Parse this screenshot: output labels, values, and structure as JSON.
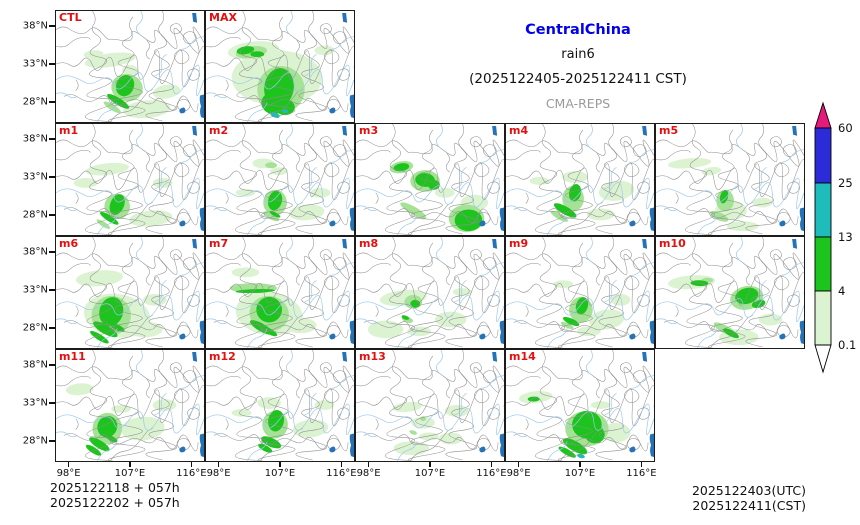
{
  "header": {
    "region": "CentralChina",
    "variable": "rain6",
    "period": "(2025122405-2025122411 CST)",
    "model": "CMA-REPS"
  },
  "axis": {
    "lat_ticks": [
      "38°N",
      "33°N",
      "28°N"
    ],
    "lon_ticks": [
      "98°E",
      "107°E",
      "116°E"
    ]
  },
  "colorbar": {
    "tick_labels": [
      "60",
      "25",
      "13",
      "4",
      "0.1"
    ],
    "segment_colors_top_to_bottom": [
      "#2b2bd8",
      "#1fbcbc",
      "#1dc41d",
      "#dcf3d2"
    ],
    "over_arrow_color": "#e6197d",
    "under_arrow_color": "#ffffff"
  },
  "footer": {
    "left": [
      "2025122118  +  057h",
      "2025122202  +  057h"
    ],
    "right": [
      "2025122403(UTC)",
      "2025122411(CST)"
    ]
  },
  "chart_data": {
    "type": "heatmap",
    "subtype": "ensemble-precipitation-filled-contour-maps",
    "title": "CentralChina rain6 (2025122405-2025122411 CST)",
    "model": "CMA-REPS",
    "panel_labels": [
      "CTL",
      "MAX",
      "m1",
      "m2",
      "m3",
      "m4",
      "m5",
      "m6",
      "m7",
      "m8",
      "m9",
      "m10",
      "m11",
      "m12",
      "m13",
      "m14"
    ],
    "x_ticks": [
      "98°E",
      "107°E",
      "116°E"
    ],
    "y_ticks": [
      "38°N",
      "33°N",
      "28°N"
    ],
    "color_levels": [
      0.1,
      4,
      13,
      25,
      60
    ],
    "level_colors": [
      "#dcf3d2",
      "#1dc41d",
      "#23b8bc",
      "#2b2bd8",
      "#e6197d"
    ],
    "legend_position": "right",
    "init_times": [
      "2025122118 + 057h",
      "2025122202 + 057h"
    ],
    "valid_time_utc": "2025122403(UTC)",
    "valid_time_cst": "2025122411(CST)"
  },
  "panels": [
    {
      "label": "CTL",
      "row": 0,
      "col": 0,
      "blobs": [
        [
          55,
          50,
          26,
          7,
          -8,
          1
        ],
        [
          38,
          44,
          10,
          4,
          -5,
          1
        ],
        [
          75,
          60,
          8,
          5,
          0,
          1
        ],
        [
          92,
          100,
          24,
          9,
          -5,
          1
        ],
        [
          112,
          82,
          14,
          7,
          -10,
          1
        ],
        [
          72,
          78,
          16,
          14,
          10,
          2
        ],
        [
          57,
          98,
          10,
          3,
          32,
          2
        ],
        [
          70,
          76,
          9,
          11,
          20,
          3
        ],
        [
          63,
          92,
          13,
          3.5,
          32,
          3
        ]
      ]
    },
    {
      "label": "MAX",
      "row": 0,
      "col": 1,
      "blobs": [
        [
          72,
          68,
          46,
          28,
          0,
          1
        ],
        [
          48,
          40,
          26,
          9,
          -6,
          1
        ],
        [
          100,
          60,
          12,
          6,
          0,
          1
        ],
        [
          120,
          40,
          10,
          5,
          0,
          1
        ],
        [
          46,
          42,
          16,
          6,
          -8,
          2
        ],
        [
          76,
          80,
          24,
          24,
          0,
          2
        ],
        [
          40,
          40,
          9,
          4,
          -10,
          3
        ],
        [
          52,
          44,
          7,
          3,
          0,
          3
        ],
        [
          74,
          78,
          15,
          20,
          8,
          3
        ],
        [
          68,
          94,
          12,
          11,
          15,
          3
        ],
        [
          80,
          98,
          10,
          8,
          0,
          3
        ],
        [
          70,
          106,
          5,
          2.5,
          20,
          4
        ],
        [
          80,
          102,
          3,
          2,
          0,
          4
        ]
      ]
    },
    {
      "label": "m1",
      "row": 1,
      "col": 0,
      "blobs": [
        [
          52,
          46,
          22,
          6,
          -6,
          1
        ],
        [
          96,
          96,
          22,
          8,
          -6,
          1
        ],
        [
          108,
          60,
          10,
          5,
          0,
          1
        ],
        [
          30,
          60,
          12,
          5,
          0,
          1
        ],
        [
          62,
          84,
          13,
          13,
          0,
          2
        ],
        [
          48,
          102,
          8,
          2.5,
          33,
          2
        ],
        [
          62,
          82,
          7,
          11,
          22,
          3
        ],
        [
          54,
          96,
          11,
          3,
          33,
          3
        ]
      ]
    },
    {
      "label": "m2",
      "row": 1,
      "col": 1,
      "blobs": [
        [
          58,
          40,
          11,
          5,
          0,
          1
        ],
        [
          74,
          48,
          9,
          4,
          0,
          1
        ],
        [
          102,
          90,
          18,
          8,
          -5,
          1
        ],
        [
          116,
          70,
          10,
          5,
          0,
          1
        ],
        [
          40,
          70,
          10,
          4,
          0,
          1
        ],
        [
          66,
          42,
          6,
          3,
          0,
          2
        ],
        [
          70,
          80,
          12,
          13,
          0,
          2
        ],
        [
          66,
          94,
          9,
          3,
          28,
          2
        ],
        [
          70,
          78,
          7,
          10,
          15,
          3
        ],
        [
          70,
          92,
          6,
          2,
          28,
          3
        ]
      ]
    },
    {
      "label": "m3",
      "row": 1,
      "col": 2,
      "blobs": [
        [
          120,
          80,
          14,
          8,
          0,
          1
        ],
        [
          90,
          70,
          10,
          5,
          0,
          1
        ],
        [
          62,
          92,
          10,
          3,
          30,
          1
        ],
        [
          46,
          44,
          12,
          6,
          -10,
          2
        ],
        [
          70,
          58,
          15,
          11,
          0,
          2
        ],
        [
          58,
          88,
          15,
          4,
          30,
          2
        ],
        [
          112,
          96,
          18,
          14,
          0,
          2
        ],
        [
          46,
          44,
          8,
          4,
          -10,
          3
        ],
        [
          70,
          57,
          10,
          7,
          5,
          3
        ],
        [
          79,
          62,
          6,
          5,
          0,
          3
        ],
        [
          114,
          98,
          14,
          11,
          0,
          3
        ]
      ]
    },
    {
      "label": "m4",
      "row": 1,
      "col": 3,
      "blobs": [
        [
          70,
          54,
          13,
          6,
          0,
          1
        ],
        [
          112,
          68,
          18,
          10,
          -8,
          1
        ],
        [
          96,
          92,
          14,
          6,
          0,
          1
        ],
        [
          34,
          58,
          10,
          4,
          0,
          1
        ],
        [
          68,
          76,
          11,
          13,
          0,
          2
        ],
        [
          54,
          94,
          10,
          3,
          30,
          2
        ],
        [
          70,
          70,
          6,
          9,
          12,
          3
        ],
        [
          60,
          88,
          13,
          4,
          30,
          3
        ]
      ]
    },
    {
      "label": "m5",
      "row": 1,
      "col": 4,
      "blobs": [
        [
          34,
          40,
          22,
          5,
          -5,
          1
        ],
        [
          56,
          48,
          10,
          4,
          -8,
          1
        ],
        [
          76,
          88,
          16,
          10,
          0,
          1
        ],
        [
          88,
          104,
          16,
          5,
          0,
          1
        ],
        [
          108,
          80,
          10,
          5,
          0,
          1
        ],
        [
          70,
          78,
          9,
          11,
          0,
          2
        ],
        [
          64,
          94,
          10,
          4,
          25,
          2
        ],
        [
          69,
          74,
          4,
          7,
          15,
          3
        ]
      ]
    },
    {
      "label": "m6",
      "row": 2,
      "col": 0,
      "blobs": [
        [
          62,
          80,
          34,
          22,
          10,
          1
        ],
        [
          44,
          42,
          24,
          8,
          -5,
          1
        ],
        [
          90,
          94,
          18,
          8,
          0,
          1
        ],
        [
          100,
          64,
          12,
          6,
          0,
          1
        ],
        [
          56,
          80,
          20,
          20,
          10,
          2
        ],
        [
          56,
          76,
          12,
          15,
          15,
          3
        ],
        [
          50,
          94,
          14,
          4.5,
          30,
          3
        ],
        [
          44,
          102,
          11,
          3,
          32,
          3
        ],
        [
          62,
          92,
          8,
          3,
          25,
          3
        ]
      ]
    },
    {
      "label": "m7",
      "row": 2,
      "col": 1,
      "blobs": [
        [
          64,
          78,
          34,
          22,
          8,
          1
        ],
        [
          40,
          36,
          14,
          5,
          0,
          1
        ],
        [
          96,
          90,
          16,
          8,
          0,
          1
        ],
        [
          48,
          52,
          24,
          5,
          0,
          2
        ],
        [
          64,
          78,
          20,
          18,
          10,
          2
        ],
        [
          50,
          55,
          20,
          2,
          -2,
          3
        ],
        [
          64,
          74,
          13,
          13,
          12,
          3
        ],
        [
          56,
          92,
          13,
          4,
          30,
          3
        ],
        [
          64,
          96,
          9,
          3,
          28,
          3
        ]
      ]
    },
    {
      "label": "m8",
      "row": 2,
      "col": 2,
      "blobs": [
        [
          48,
          62,
          24,
          8,
          -6,
          1
        ],
        [
          30,
          94,
          18,
          9,
          0,
          1
        ],
        [
          96,
          84,
          16,
          8,
          0,
          1
        ],
        [
          64,
          96,
          12,
          5,
          0,
          1
        ],
        [
          108,
          56,
          10,
          4,
          0,
          1
        ],
        [
          58,
          66,
          9,
          7,
          0,
          2
        ],
        [
          52,
          84,
          6,
          3,
          20,
          2
        ],
        [
          60,
          68,
          5,
          4,
          0,
          3
        ],
        [
          50,
          82,
          4,
          2,
          20,
          3
        ]
      ]
    },
    {
      "label": "m9",
      "row": 2,
      "col": 3,
      "blobs": [
        [
          58,
          48,
          10,
          4,
          0,
          1
        ],
        [
          102,
          84,
          18,
          10,
          -8,
          1
        ],
        [
          116,
          64,
          10,
          6,
          0,
          1
        ],
        [
          84,
          96,
          12,
          5,
          0,
          1
        ],
        [
          76,
          74,
          12,
          13,
          0,
          2
        ],
        [
          62,
          90,
          7,
          2.5,
          25,
          2
        ],
        [
          77,
          70,
          6,
          9,
          15,
          3
        ],
        [
          66,
          86,
          9,
          3,
          25,
          3
        ]
      ]
    },
    {
      "label": "m10",
      "row": 2,
      "col": 4,
      "blobs": [
        [
          36,
          46,
          24,
          7,
          -4,
          1
        ],
        [
          84,
          102,
          20,
          8,
          0,
          1
        ],
        [
          116,
          84,
          12,
          6,
          0,
          1
        ],
        [
          52,
          44,
          6,
          2.5,
          0,
          2
        ],
        [
          92,
          62,
          17,
          12,
          -12,
          2
        ],
        [
          70,
          94,
          13,
          4,
          28,
          2
        ],
        [
          44,
          47,
          9,
          3,
          2,
          3
        ],
        [
          92,
          60,
          12,
          8,
          -15,
          3
        ],
        [
          104,
          68,
          7,
          4,
          -15,
          3
        ],
        [
          76,
          98,
          9,
          3,
          28,
          3
        ]
      ]
    },
    {
      "label": "m11",
      "row": 3,
      "col": 0,
      "blobs": [
        [
          24,
          40,
          14,
          6,
          -5,
          1
        ],
        [
          88,
          80,
          22,
          12,
          -5,
          1
        ],
        [
          110,
          56,
          12,
          6,
          0,
          1
        ],
        [
          66,
          60,
          10,
          4,
          0,
          1
        ],
        [
          52,
          80,
          15,
          16,
          10,
          2
        ],
        [
          52,
          78,
          10,
          11,
          20,
          3
        ],
        [
          44,
          96,
          12,
          4,
          32,
          3
        ],
        [
          38,
          102,
          9,
          3,
          33,
          3
        ],
        [
          56,
          90,
          7,
          2.5,
          28,
          3
        ]
      ]
    },
    {
      "label": "m12",
      "row": 3,
      "col": 1,
      "blobs": [
        [
          64,
          54,
          12,
          6,
          0,
          1
        ],
        [
          106,
          80,
          18,
          9,
          -6,
          1
        ],
        [
          120,
          56,
          10,
          5,
          0,
          1
        ],
        [
          36,
          64,
          10,
          4,
          0,
          1
        ],
        [
          70,
          76,
          13,
          14,
          0,
          2
        ],
        [
          71,
          72,
          8,
          11,
          10,
          3
        ],
        [
          66,
          94,
          11,
          4.5,
          25,
          3
        ],
        [
          60,
          100,
          8,
          3,
          28,
          3
        ]
      ]
    },
    {
      "label": "m13",
      "row": 3,
      "col": 2,
      "blobs": [
        [
          52,
          58,
          15,
          5,
          -6,
          1
        ],
        [
          68,
          74,
          12,
          6,
          0,
          1
        ],
        [
          74,
          88,
          10,
          4,
          0,
          1
        ],
        [
          56,
          100,
          18,
          7,
          0,
          1
        ],
        [
          102,
          62,
          12,
          6,
          0,
          1
        ],
        [
          96,
          90,
          12,
          6,
          0,
          1
        ],
        [
          68,
          70,
          3,
          2.5,
          0,
          2
        ],
        [
          58,
          84,
          4,
          2,
          20,
          2
        ]
      ]
    },
    {
      "label": "m14",
      "row": 3,
      "col": 3,
      "blobs": [
        [
          30,
          48,
          17,
          6,
          -6,
          1
        ],
        [
          112,
          84,
          14,
          10,
          0,
          1
        ],
        [
          96,
          56,
          10,
          4,
          0,
          1
        ],
        [
          82,
          80,
          22,
          18,
          0,
          2
        ],
        [
          28,
          50,
          6,
          2.5,
          0,
          3
        ],
        [
          82,
          76,
          15,
          14,
          0,
          3
        ],
        [
          90,
          86,
          10,
          9,
          0,
          3
        ],
        [
          70,
          98,
          14,
          5,
          30,
          3
        ],
        [
          62,
          104,
          10,
          3,
          30,
          3
        ],
        [
          76,
          108,
          4,
          2,
          15,
          4
        ]
      ]
    }
  ]
}
